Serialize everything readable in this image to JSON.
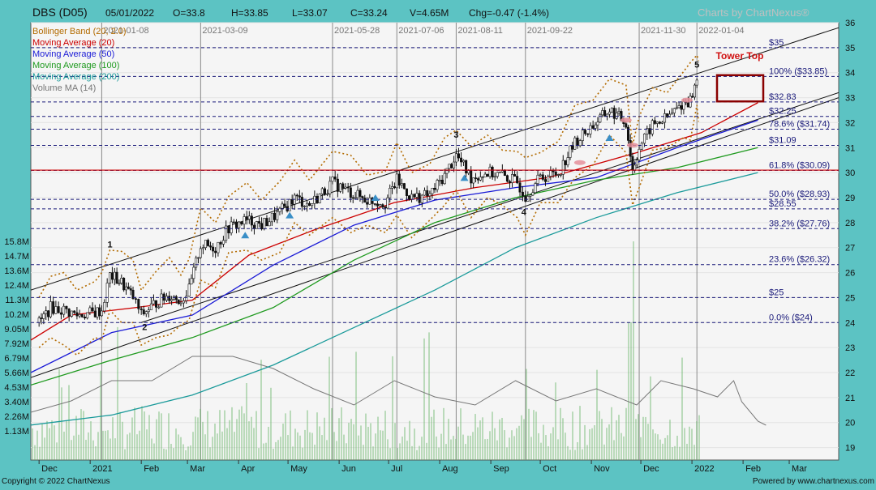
{
  "header": {
    "symbol": "DBS (D05)",
    "date": "05/01/2022",
    "open": "O=33.8",
    "high": "H=33.85",
    "low": "L=33.07",
    "close": "C=33.24",
    "volume": "V=4.65M",
    "change": "Chg=-0.47 (-1.4%)",
    "watermark": "Charts by ChartNexus®"
  },
  "legend": [
    {
      "label": "Bollinger Band (20, 2.0)",
      "color": "#b36b00"
    },
    {
      "label": "Moving Average (20)",
      "color": "#cc0000"
    },
    {
      "label": "Moving Average (50)",
      "color": "#1a1ad6"
    },
    {
      "label": "Moving Average (100)",
      "color": "#1f9a1f"
    },
    {
      "label": "Moving Average (200)",
      "color": "#1a9a9a"
    },
    {
      "label": "Volume MA (14)",
      "color": "#777777"
    }
  ],
  "date_markers": [
    "2021-01-08",
    "2021-03-09",
    "2021-05-28",
    "2021-07-06",
    "2021-08-11",
    "2021-09-22",
    "2021-11-30",
    "2022-01-04"
  ],
  "annotations": {
    "tower_top": "Tower Top",
    "wave_labels": [
      "1",
      "2",
      "3",
      "4",
      "5"
    ]
  },
  "fib_levels": [
    {
      "label": "$35",
      "value": 35
    },
    {
      "label": "100%   ($33.85)",
      "value": 33.85
    },
    {
      "label": "$32.83",
      "value": 32.83
    },
    {
      "label": "$32.25",
      "value": 32.25
    },
    {
      "label": "78.6%   ($31.74)",
      "value": 31.74
    },
    {
      "label": "$31.09",
      "value": 31.09
    },
    {
      "label": "61.8%   ($30.09)",
      "value": 30.09
    },
    {
      "label": "50.0%   ($28.93)",
      "value": 28.93
    },
    {
      "label": "$28.55",
      "value": 28.55
    },
    {
      "label": "38.2%   ($27.76)",
      "value": 27.76
    },
    {
      "label": "23.6%   ($26.32)",
      "value": 26.32
    },
    {
      "label": "$25",
      "value": 25
    },
    {
      "label": "0.0%   ($24)",
      "value": 24
    }
  ],
  "footer": {
    "copyright": "Copyright © 2022 ChartNexus",
    "powered": "Powered by www.chartnexus.com"
  },
  "chart_data": {
    "type": "candlestick",
    "title": "DBS (D05)",
    "price_ticks": [
      19,
      20,
      21,
      22,
      23,
      24,
      25,
      26,
      27,
      28,
      29,
      30,
      31,
      32,
      33,
      34,
      35,
      36
    ],
    "price_range": [
      18.5,
      36
    ],
    "volume_tick_labels": [
      "15.8M",
      "14.7M",
      "13.6M",
      "12.4M",
      "11.3M",
      "10.2M",
      "9.05M",
      "7.92M",
      "6.79M",
      "5.66M",
      "4.53M",
      "3.40M",
      "2.26M",
      "1.13M"
    ],
    "x_labels": [
      "Dec",
      "2021",
      "Feb",
      "Mar",
      "Apr",
      "May",
      "Jun",
      "Jul",
      "Aug",
      "Sep",
      "Oct",
      "Nov",
      "Dec",
      "2022",
      "Feb",
      "Mar"
    ],
    "close_path": [
      {
        "date": "2020-12-01",
        "close": 24.0
      },
      {
        "date": "2020-12-08",
        "close": 24.6
      },
      {
        "date": "2020-12-16",
        "close": 24.5
      },
      {
        "date": "2020-12-24",
        "close": 24.3
      },
      {
        "date": "2021-01-04",
        "close": 24.4
      },
      {
        "date": "2021-01-08",
        "close": 24.5
      },
      {
        "date": "2021-01-13",
        "close": 25.9
      },
      {
        "date": "2021-01-20",
        "close": 25.6
      },
      {
        "date": "2021-01-27",
        "close": 25.0
      },
      {
        "date": "2021-02-01",
        "close": 24.3
      },
      {
        "date": "2021-02-10",
        "close": 24.8
      },
      {
        "date": "2021-02-18",
        "close": 25.1
      },
      {
        "date": "2021-02-25",
        "close": 24.9
      },
      {
        "date": "2021-03-02",
        "close": 25.3
      },
      {
        "date": "2021-03-09",
        "close": 27.1
      },
      {
        "date": "2021-03-18",
        "close": 27.0
      },
      {
        "date": "2021-03-26",
        "close": 27.8
      },
      {
        "date": "2021-04-06",
        "close": 28.1
      },
      {
        "date": "2021-04-15",
        "close": 27.9
      },
      {
        "date": "2021-04-26",
        "close": 28.4
      },
      {
        "date": "2021-05-05",
        "close": 29.0
      },
      {
        "date": "2021-05-14",
        "close": 28.7
      },
      {
        "date": "2021-05-28",
        "close": 29.6
      },
      {
        "date": "2021-06-08",
        "close": 29.2
      },
      {
        "date": "2021-06-18",
        "close": 28.9
      },
      {
        "date": "2021-06-29",
        "close": 28.8
      },
      {
        "date": "2021-07-06",
        "close": 29.7
      },
      {
        "date": "2021-07-15",
        "close": 29.0
      },
      {
        "date": "2021-07-26",
        "close": 29.1
      },
      {
        "date": "2021-08-04",
        "close": 29.9
      },
      {
        "date": "2021-08-11",
        "close": 30.7
      },
      {
        "date": "2021-08-20",
        "close": 29.8
      },
      {
        "date": "2021-08-30",
        "close": 30.0
      },
      {
        "date": "2021-09-08",
        "close": 29.9
      },
      {
        "date": "2021-09-17",
        "close": 29.6
      },
      {
        "date": "2021-09-22",
        "close": 29.1
      },
      {
        "date": "2021-10-01",
        "close": 29.8
      },
      {
        "date": "2021-10-12",
        "close": 30.0
      },
      {
        "date": "2021-10-22",
        "close": 31.2
      },
      {
        "date": "2021-11-02",
        "close": 31.9
      },
      {
        "date": "2021-11-12",
        "close": 32.5
      },
      {
        "date": "2021-11-22",
        "close": 32.0
      },
      {
        "date": "2021-11-26",
        "close": 30.1
      },
      {
        "date": "2021-11-30",
        "close": 31.0
      },
      {
        "date": "2021-12-08",
        "close": 31.9
      },
      {
        "date": "2021-12-17",
        "close": 32.2
      },
      {
        "date": "2021-12-27",
        "close": 32.8
      },
      {
        "date": "2021-12-31",
        "close": 32.9
      },
      {
        "date": "2022-01-04",
        "close": 33.7
      },
      {
        "date": "2022-01-05",
        "close": 33.24
      }
    ],
    "moving_averages": [
      {
        "name": "Moving Average (20)",
        "points": [
          [
            0,
            23.3
          ],
          [
            0.05,
            24.3
          ],
          [
            0.13,
            24.6
          ],
          [
            0.2,
            24.9
          ],
          [
            0.27,
            26.7
          ],
          [
            0.35,
            27.7
          ],
          [
            0.45,
            28.8
          ],
          [
            0.55,
            29.4
          ],
          [
            0.64,
            29.8
          ],
          [
            0.75,
            30.8
          ],
          [
            0.83,
            31.6
          ],
          [
            0.9,
            32.8
          ]
        ]
      },
      {
        "name": "Moving Average (50)",
        "points": [
          [
            0,
            22.0
          ],
          [
            0.1,
            23.6
          ],
          [
            0.2,
            24.3
          ],
          [
            0.3,
            26.3
          ],
          [
            0.4,
            27.9
          ],
          [
            0.5,
            28.9
          ],
          [
            0.6,
            29.4
          ],
          [
            0.7,
            29.8
          ],
          [
            0.8,
            31.0
          ],
          [
            0.9,
            32.1
          ]
        ]
      },
      {
        "name": "Moving Average (100)",
        "points": [
          [
            0,
            21.5
          ],
          [
            0.1,
            22.5
          ],
          [
            0.2,
            23.4
          ],
          [
            0.3,
            24.6
          ],
          [
            0.4,
            26.5
          ],
          [
            0.5,
            28.0
          ],
          [
            0.6,
            29.0
          ],
          [
            0.7,
            29.7
          ],
          [
            0.8,
            30.2
          ],
          [
            0.9,
            31.0
          ]
        ]
      },
      {
        "name": "Moving Average (200)",
        "points": [
          [
            0,
            19.9
          ],
          [
            0.1,
            20.3
          ],
          [
            0.2,
            21.1
          ],
          [
            0.3,
            22.3
          ],
          [
            0.4,
            23.8
          ],
          [
            0.5,
            25.3
          ],
          [
            0.6,
            27.0
          ],
          [
            0.7,
            28.2
          ],
          [
            0.8,
            29.2
          ],
          [
            0.9,
            30.0
          ]
        ]
      }
    ],
    "channel_lines": [
      {
        "from": {
          "date": "2020-11-26",
          "price": 25.3
        },
        "to": {
          "date": "2022-03-31",
          "price": 35.8
        }
      },
      {
        "from": {
          "date": "2020-11-26",
          "price": 21.8
        },
        "to": {
          "date": "2022-03-31",
          "price": 33.0
        }
      },
      {
        "from": {
          "date": "2021-02-01",
          "price": 24.0
        },
        "to": {
          "date": "2022-03-31",
          "price": 33.2
        }
      }
    ],
    "horizontal_line": {
      "price": 30.1,
      "color": "#cc0000"
    },
    "volume_ma_note": "Volume MA (14)"
  }
}
